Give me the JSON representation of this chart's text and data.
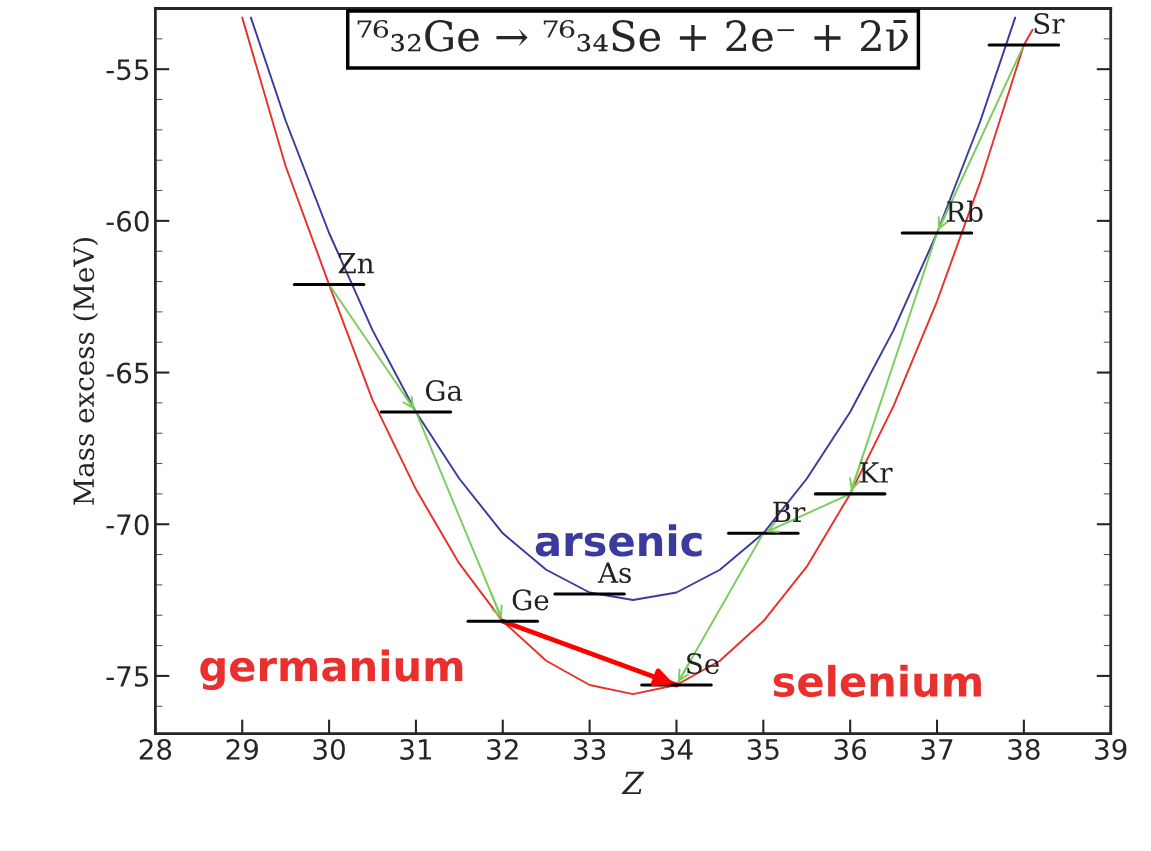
{
  "chart_data": {
    "type": "line",
    "title": "⁷⁶₃₂Ge → ⁷⁶₃₄Se + 2e⁻ + 2ν̄",
    "xlabel": "Z",
    "ylabel": "Mass excess (MeV)",
    "xlim": [
      28,
      39
    ],
    "xticks": [
      28,
      29,
      30,
      31,
      32,
      33,
      34,
      35,
      36,
      37,
      38,
      39
    ],
    "ylim": [
      -76.9,
      -53
    ],
    "yticks": [
      -75,
      -70,
      -65,
      -60,
      -55
    ],
    "grid": false,
    "series": [
      {
        "name": "arsenic",
        "color": "#3b3b9e",
        "x": [
          29.1,
          29.5,
          30,
          30.5,
          31,
          31.5,
          32,
          32.5,
          33,
          33.5,
          34,
          34.5,
          35,
          35.5,
          36,
          36.5,
          37,
          37.5,
          37.9
        ],
        "values": [
          -53.3,
          -56.7,
          -60.4,
          -63.6,
          -66.3,
          -68.5,
          -70.3,
          -71.5,
          -72.25,
          -72.5,
          -72.25,
          -71.5,
          -70.3,
          -68.5,
          -66.3,
          -63.6,
          -60.4,
          -56.7,
          -53.3
        ]
      },
      {
        "color": "#e8312f",
        "x": [
          29.0,
          29.5,
          30,
          30.5,
          31,
          31.5,
          32,
          32.5,
          33,
          33.5,
          34,
          34.5,
          35,
          35.5,
          36,
          36.5,
          37,
          37.5,
          38,
          38.1
        ],
        "values": [
          -53.3,
          -58.2,
          -62.1,
          -65.9,
          -68.85,
          -71.3,
          -73.2,
          -74.5,
          -75.3,
          -75.6,
          -75.3,
          -74.5,
          -73.2,
          -71.4,
          -69.0,
          -66.1,
          -62.65,
          -58.7,
          -54.2,
          -53.7
        ]
      },
      {
        "color": "#7dcc5f",
        "x": [
          30,
          31,
          32
        ],
        "values": [
          -62.1,
          -66.3,
          -73.2
        ]
      },
      {
        "color": "#7dcc5f",
        "x": [
          38,
          37,
          36,
          35,
          34
        ],
        "values": [
          -54.2,
          -60.4,
          -69.0,
          -70.3,
          -75.3
        ]
      },
      {
        "color": "#ff0000",
        "x": [
          32,
          34
        ],
        "values": [
          -73.2,
          -75.3
        ]
      },
      {
        "color": "#000000",
        "x": [
          29.6,
          30.4
        ],
        "values": [
          -62.1,
          -62.1
        ]
      },
      {
        "color": "#000000",
        "x": [
          30.6,
          31.4
        ],
        "values": [
          -66.3,
          -66.3
        ]
      },
      {
        "color": "#000000",
        "x": [
          31.6,
          32.4
        ],
        "values": [
          -73.2,
          -73.2
        ]
      },
      {
        "color": "#000000",
        "x": [
          32.6,
          33.4
        ],
        "values": [
          -72.3,
          -72.3
        ]
      },
      {
        "color": "#000000",
        "x": [
          33.6,
          34.4
        ],
        "values": [
          -75.3,
          -75.3
        ]
      },
      {
        "color": "#000000",
        "x": [
          34.6,
          35.4
        ],
        "values": [
          -70.3,
          -70.3
        ]
      },
      {
        "color": "#000000",
        "x": [
          35.6,
          36.4
        ],
        "values": [
          -69.0,
          -69.0
        ]
      },
      {
        "color": "#000000",
        "x": [
          36.6,
          37.4
        ],
        "values": [
          -60.4,
          -60.4
        ]
      },
      {
        "color": "#000000",
        "x": [
          37.6,
          38.4
        ],
        "values": [
          -54.2,
          -54.2
        ]
      }
    ],
    "annotations": [
      {
        "text": "Zn",
        "x": 30,
        "y": -62.1
      },
      {
        "text": "Ga",
        "x": 31,
        "y": -66.3
      },
      {
        "text": "Ge",
        "x": 32,
        "y": -73.2
      },
      {
        "text": "As",
        "x": 33,
        "y": -72.3
      },
      {
        "text": "Se",
        "x": 34,
        "y": -75.3
      },
      {
        "text": "Br",
        "x": 35,
        "y": -70.3
      },
      {
        "text": "Kr",
        "x": 36,
        "y": -69.0
      },
      {
        "text": "Rb",
        "x": 37,
        "y": -60.4
      },
      {
        "text": "Sr",
        "x": 38,
        "y": -54.2
      },
      "germanium",
      "selenium"
    ]
  }
}
